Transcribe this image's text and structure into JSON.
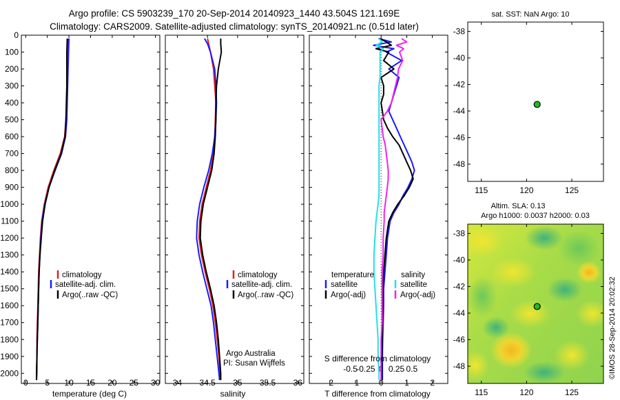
{
  "title_line1": "Argo profile: CS 5903239_170 20-Sep-2014 20140923_1440 43.504S 121.169E",
  "title_line2": "Climatology: CARS2009. Satellite-adjusted climatology: synTS_20140921.nc (0.51d later)",
  "colors": {
    "climatology": "#dd2222",
    "satellite": "#1a1aff",
    "argo": "#000000",
    "sal_satellite": "#22e0e8",
    "sal_argo": "#ee22ee",
    "marker": "#22bb22"
  },
  "chart_data": [
    {
      "type": "line",
      "name": "temperature-profile",
      "xlabel": "temperature (deg C)",
      "ylabel": "",
      "xlim": [
        -1,
        31
      ],
      "ylim": [
        2060,
        0
      ],
      "xticks": [
        0,
        5,
        10,
        15,
        20,
        25,
        30
      ],
      "yticks": [
        0,
        100,
        200,
        300,
        400,
        500,
        600,
        700,
        800,
        900,
        1000,
        1100,
        1200,
        1300,
        1400,
        1500,
        1600,
        1700,
        1800,
        1900,
        2000
      ],
      "legend": [
        "climatology",
        "satellite-adj. clim.",
        "Argo(..raw -QC)"
      ],
      "series": [
        {
          "name": "climatology",
          "depth": [
            20,
            100,
            200,
            300,
            400,
            500,
            600,
            700,
            800,
            900,
            1000,
            1100,
            1200,
            1300,
            1400,
            1500,
            1600,
            1700,
            1800,
            1900,
            2000,
            2040
          ],
          "values": [
            9.8,
            9.8,
            9.7,
            9.6,
            9.5,
            9.3,
            9.0,
            8.0,
            6.5,
            5.2,
            4.3,
            3.7,
            3.4,
            3.2,
            3.0,
            2.9,
            2.8,
            2.7,
            2.6,
            2.6,
            2.5,
            2.5
          ]
        },
        {
          "name": "satellite-adj. clim.",
          "depth": [
            20,
            100,
            200,
            300,
            400,
            500,
            600,
            700,
            800,
            900,
            1000,
            1100,
            1200,
            1300,
            1400,
            1500,
            1600,
            1700,
            1800,
            1900,
            2000,
            2040
          ],
          "values": [
            10.0,
            9.9,
            9.8,
            9.7,
            9.6,
            9.5,
            9.2,
            8.3,
            6.8,
            5.4,
            4.4,
            3.8,
            3.5,
            3.3,
            3.1,
            3.0,
            2.9,
            2.8,
            2.7,
            2.6,
            2.6,
            2.5
          ]
        },
        {
          "name": "Argo(..raw -QC)",
          "depth": [
            20,
            100,
            200,
            300,
            400,
            500,
            600,
            700,
            800,
            900,
            1000,
            1100,
            1200,
            1300,
            1400,
            1500,
            1600,
            1700,
            1800,
            1900,
            2000,
            2040
          ],
          "values": [
            9.6,
            9.5,
            9.5,
            9.5,
            9.4,
            9.3,
            9.1,
            8.2,
            6.7,
            5.4,
            4.5,
            3.9,
            3.6,
            3.3,
            3.1,
            3.0,
            2.9,
            2.8,
            2.7,
            2.6,
            2.5,
            2.5
          ]
        }
      ]
    },
    {
      "type": "line",
      "name": "salinity-profile",
      "xlabel": "salinity",
      "xlim": [
        33.8,
        36.1
      ],
      "ylim": [
        2060,
        0
      ],
      "xticks": [
        34,
        34.5,
        35,
        35.5,
        36
      ],
      "xticklabels": [
        "34",
        "34.5",
        "35",
        "35.5",
        "36"
      ],
      "legend": [
        "climatology",
        "satellite-adj. clim.",
        "Argo(..raw -QC)"
      ],
      "annotation": [
        "Argo Australia",
        "PI: Susan Wijffels"
      ],
      "series": [
        {
          "name": "climatology",
          "depth": [
            20,
            50,
            100,
            200,
            300,
            400,
            500,
            600,
            700,
            800,
            900,
            1000,
            1100,
            1200,
            1300,
            1400,
            1500,
            1600,
            1700,
            1800,
            1900,
            2000,
            2040
          ],
          "values": [
            34.5,
            34.52,
            34.55,
            34.6,
            34.62,
            34.64,
            34.63,
            34.62,
            34.6,
            34.55,
            34.48,
            34.41,
            34.37,
            34.36,
            34.4,
            34.46,
            34.53,
            34.59,
            34.63,
            34.66,
            34.69,
            34.71,
            34.72
          ]
        },
        {
          "name": "satellite-adj. clim.",
          "depth": [
            20,
            50,
            100,
            200,
            300,
            400,
            500,
            600,
            700,
            800,
            900,
            1000,
            1100,
            1200,
            1300,
            1400,
            1500,
            1600,
            1700,
            1800,
            1900,
            2000,
            2040
          ],
          "values": [
            34.45,
            34.5,
            34.55,
            34.62,
            34.64,
            34.65,
            34.64,
            34.62,
            34.58,
            34.52,
            34.44,
            34.37,
            34.33,
            34.32,
            34.36,
            34.42,
            34.49,
            34.56,
            34.6,
            34.63,
            34.66,
            34.69,
            34.7
          ]
        },
        {
          "name": "Argo(..raw -QC)",
          "depth": [
            20,
            50,
            100,
            200,
            300,
            400,
            500,
            600,
            700,
            800,
            900,
            1000,
            1100,
            1200,
            1300,
            1400,
            1500,
            1600,
            1700,
            1800,
            1900,
            2000,
            2040
          ],
          "values": [
            34.72,
            34.72,
            34.73,
            34.68,
            34.65,
            34.64,
            34.64,
            34.63,
            34.61,
            34.57,
            34.5,
            34.43,
            34.39,
            34.38,
            34.42,
            34.48,
            34.55,
            34.61,
            34.65,
            34.68,
            34.7,
            34.72,
            34.72
          ]
        }
      ]
    },
    {
      "type": "line",
      "name": "difference-profile",
      "xlabel": "T difference from climatology",
      "xlabel2": "S difference from climatology",
      "xlim": [
        -2.8,
        2.6
      ],
      "ylim": [
        2060,
        0
      ],
      "xticks": [
        -2,
        -1,
        0,
        1,
        2
      ],
      "s_xticks": [
        -0.5,
        -0.25,
        0,
        0.25,
        0.5
      ],
      "s_xticklabels": [
        "-0.5",
        "-0.25",
        "0",
        "0.25",
        "0.5"
      ],
      "legend_temperature_header": "temperature",
      "legend_salinity_header": "salinity",
      "legend_temperature": [
        "satellite",
        "Argo(-adj)"
      ],
      "legend_salinity": [
        "satellite",
        "Argo(-adj)"
      ],
      "series": [
        {
          "name": "T satellite",
          "depth": [
            20,
            40,
            60,
            80,
            100,
            150,
            200,
            250,
            300,
            350,
            400,
            450,
            500,
            550,
            600,
            650,
            700,
            750,
            800,
            850,
            900,
            950,
            1000,
            1050,
            1100,
            1200,
            1300,
            1400,
            1500,
            1600,
            1700,
            1800,
            1900,
            2000,
            2040
          ],
          "values": [
            -0.1,
            0.4,
            -0.3,
            0.5,
            0.2,
            0.8,
            0.3,
            0.7,
            0.6,
            0.5,
            0.4,
            0.3,
            0.45,
            0.6,
            0.75,
            0.9,
            1.05,
            1.2,
            1.3,
            1.2,
            1.05,
            0.85,
            0.7,
            0.5,
            0.35,
            0.25,
            0.2,
            0.15,
            0.1,
            0.1,
            0.08,
            0.06,
            0.05,
            0.05,
            0.05
          ]
        },
        {
          "name": "T Argo(-adj)",
          "depth": [
            20,
            40,
            60,
            80,
            100,
            150,
            200,
            250,
            300,
            350,
            400,
            450,
            500,
            550,
            600,
            650,
            700,
            750,
            800,
            850,
            900,
            950,
            1000,
            1050,
            1100,
            1200,
            1300,
            1400,
            1500,
            1600,
            1700,
            1800,
            1900,
            2000,
            2040
          ],
          "values": [
            -0.05,
            0.2,
            0.4,
            -0.2,
            0.3,
            0.1,
            0.5,
            0.0,
            0.1,
            0.1,
            0.0,
            0.05,
            0.1,
            0.25,
            0.45,
            0.7,
            0.85,
            1.0,
            1.15,
            1.25,
            1.1,
            0.9,
            0.65,
            0.45,
            0.3,
            0.2,
            0.15,
            0.1,
            0.08,
            0.06,
            0.05,
            0.04,
            0.03,
            0.03,
            0.03
          ]
        },
        {
          "name": "S satellite",
          "depth": [
            20,
            40,
            60,
            80,
            100,
            150,
            200,
            250,
            300,
            350,
            400,
            450,
            500,
            550,
            600,
            650,
            700,
            750,
            800,
            850,
            900,
            950,
            1000,
            1050,
            1100,
            1200,
            1300,
            1400,
            1500,
            1600,
            1700,
            1800,
            1900,
            2000,
            2040
          ],
          "values": [
            -0.02,
            0.01,
            -0.05,
            0.02,
            -0.01,
            -0.01,
            -0.01,
            -0.01,
            -0.02,
            -0.02,
            -0.02,
            -0.02,
            -0.02,
            -0.02,
            -0.02,
            -0.02,
            -0.02,
            -0.02,
            -0.02,
            -0.02,
            -0.02,
            -0.02,
            -0.03,
            -0.04,
            -0.05,
            -0.06,
            -0.07,
            -0.07,
            -0.06,
            -0.05,
            -0.04,
            -0.03,
            -0.03,
            -0.02,
            -0.02
          ]
        },
        {
          "name": "S Argo(-adj)",
          "depth": [
            20,
            40,
            60,
            80,
            100,
            150,
            200,
            250,
            300,
            350,
            400,
            450,
            500,
            550,
            600,
            650,
            700,
            750,
            800,
            850,
            900,
            950,
            1000,
            1050,
            1100,
            1200,
            1300,
            1400,
            1500,
            1600,
            1700,
            1800,
            1900,
            2000,
            2040
          ],
          "values": [
            0.2,
            0.25,
            0.15,
            0.22,
            0.18,
            0.21,
            0.17,
            0.16,
            0.14,
            0.12,
            0.1,
            0.06,
            0.0,
            0.01,
            0.02,
            0.04,
            0.05,
            0.06,
            0.07,
            0.07,
            0.06,
            0.05,
            0.04,
            0.03,
            0.03,
            0.02,
            0.02,
            0.01,
            0.01,
            0.01,
            0.01,
            0.0,
            0.0,
            0.0,
            0.0
          ]
        }
      ]
    },
    {
      "type": "scatter",
      "name": "sst-map",
      "title": "sat. SST: NaN Argo: 10",
      "xlim": [
        113.5,
        128.5
      ],
      "ylim": [
        -49.3,
        -37.3
      ],
      "xticks": [
        115,
        120,
        125
      ],
      "yticks": [
        -38,
        -40,
        -42,
        -44,
        -46,
        -48
      ],
      "points": [
        {
          "x": 121.169,
          "y": -43.504
        }
      ]
    },
    {
      "type": "heatmap",
      "name": "sla-map",
      "title_line1": "Altim. SLA: 0.13",
      "title_line2": "Argo h1000: 0.0037 h2000: 0.03",
      "xlim": [
        113.5,
        128.5
      ],
      "ylim": [
        -49.3,
        -37.3
      ],
      "xticks": [
        115,
        120,
        125
      ],
      "yticks": [
        -38,
        -40,
        -42,
        -44,
        -46,
        -48
      ],
      "points": [
        {
          "x": 121.169,
          "y": -43.504
        }
      ],
      "side_label": "©IMOS 28-Sep-2014 20:02:32"
    }
  ]
}
